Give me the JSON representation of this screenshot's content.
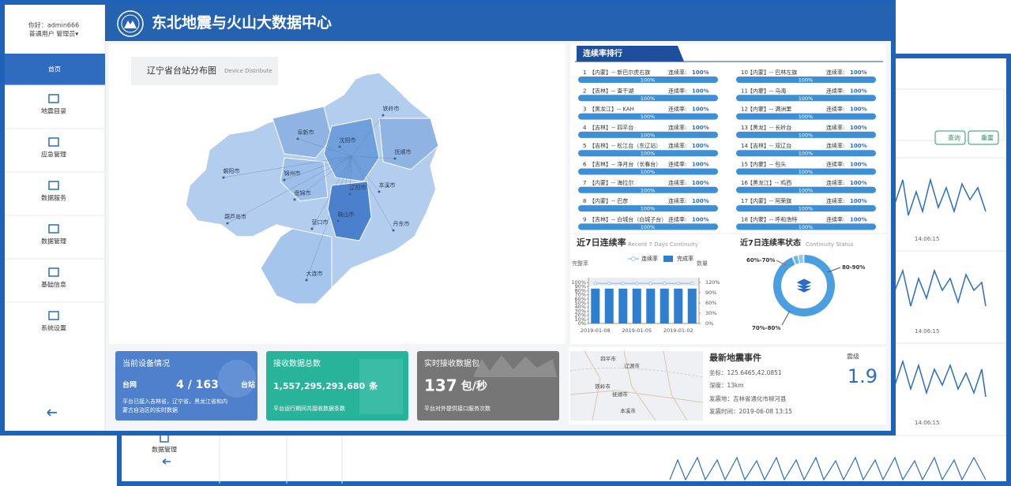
{
  "back_window": {
    "buttons": [
      "查询",
      "重置"
    ],
    "times": [
      "14:06:15",
      "14:06:15",
      "14:06:15"
    ],
    "sidebar_item": "数据管理"
  },
  "sidebar": {
    "greeting": "你好：admin666",
    "role": "普通用户 管理员▾",
    "menu": [
      "首页",
      "地震目录",
      "应急管理",
      "数据服务",
      "数据管理",
      "基础信息",
      "系统设置"
    ]
  },
  "header": {
    "title": "东北地震与火山大数据中心"
  },
  "map": {
    "title": "辽宁省台站分布图",
    "subtitle": "Device Distribute",
    "cities": [
      "铁岭市",
      "阜新市",
      "沈阳市",
      "抚顺市",
      "朝阳市",
      "锦州市",
      "辽阳市",
      "本溪市",
      "盘锦市",
      "鞍山市",
      "葫芦岛市",
      "营口市",
      "丹东市",
      "大连市"
    ]
  },
  "ranking": {
    "title": "连续率排行",
    "rate_label": "连续率:",
    "items": [
      {
        "rank": "1",
        "station": "【内蒙】-- 新巴尔虎右旗",
        "rate": 100,
        "rate_label": "100%"
      },
      {
        "rank": "2",
        "station": "【吉林】-- 查干湖",
        "rate": 100,
        "rate_label": "100%"
      },
      {
        "rank": "3",
        "station": "【黑龙江】-- KAH",
        "rate": 100,
        "rate_label": "100%"
      },
      {
        "rank": "4",
        "station": "【吉林】-- 四平台",
        "rate": 100,
        "rate_label": "100%"
      },
      {
        "rank": "5",
        "station": "【吉林】-- 松江台（东辽站）",
        "rate": 100,
        "rate_label": "100%"
      },
      {
        "rank": "6",
        "station": "【吉林】-- 净月台（长春台）",
        "rate": 100,
        "rate_label": "100%"
      },
      {
        "rank": "7",
        "station": "【内蒙】-- 海拉尔",
        "rate": 100,
        "rate_label": "100%"
      },
      {
        "rank": "8",
        "station": "【内蒙】-- 巴彦",
        "rate": 100,
        "rate_label": "100%"
      },
      {
        "rank": "9",
        "station": "【吉林】-- 白城台（白城子台）",
        "rate": 100,
        "rate_label": "100%"
      },
      {
        "rank": "10",
        "station": "【内蒙】-- 巴林左旗",
        "rate": 100,
        "rate_label": "100%"
      },
      {
        "rank": "11",
        "station": "【内蒙】-- 乌海",
        "rate": 100,
        "rate_label": "100%"
      },
      {
        "rank": "12",
        "station": "【内蒙】-- 满洲里",
        "rate": 100,
        "rate_label": "100%"
      },
      {
        "rank": "13",
        "station": "【黑龙】-- 长岭台",
        "rate": 100,
        "rate_label": "100%"
      },
      {
        "rank": "14",
        "station": "【吉林】-- 双辽台",
        "rate": 100,
        "rate_label": "100%"
      },
      {
        "rank": "15",
        "station": "【内蒙】-- 包头",
        "rate": 100,
        "rate_label": "100%"
      },
      {
        "rank": "16",
        "station": "【黑龙江】-- 鸡西",
        "rate": 100,
        "rate_label": "100%"
      },
      {
        "rank": "17",
        "station": "【内蒙】-- 阿荣旗",
        "rate": 100,
        "rate_label": "100%"
      },
      {
        "rank": "18",
        "station": "【内蒙】-- 呼和浩特",
        "rate": 100,
        "rate_label": "100%"
      }
    ]
  },
  "continuity_chart": {
    "type": "bar",
    "title": "近7日连续率",
    "subtitle": "Recent 7 Days Continuity",
    "y_label": "完整率",
    "y2_label": "数量",
    "categories": [
      "2019-01-08",
      null,
      null,
      "2019-01-05",
      null,
      null,
      "2019-01-02",
      null
    ],
    "series": [
      {
        "name": "连续率",
        "type": "line",
        "axis": "y2",
        "color": "#9ec9e8",
        "values": [
          117,
          117,
          117,
          117,
          117,
          117,
          117,
          117
        ]
      },
      {
        "name": "完成率",
        "type": "bar",
        "color": "#2f7fd0",
        "values": [
          85,
          85,
          85,
          85,
          85,
          85,
          85,
          85
        ]
      }
    ],
    "ylim": [
      0,
      100
    ],
    "yticks": [
      {
        "value": 0,
        "label": "0%"
      },
      {
        "value": 10,
        "label": "10%"
      },
      {
        "value": 20,
        "label": "20%"
      },
      {
        "value": 30,
        "label": "30%"
      },
      {
        "value": 40,
        "label": "40%"
      },
      {
        "value": 50,
        "label": "50%"
      },
      {
        "value": 60,
        "label": "60%"
      },
      {
        "value": 70,
        "label": "70%"
      },
      {
        "value": 80,
        "label": "80%"
      },
      {
        "value": 90,
        "label": "90%"
      },
      {
        "value": 100,
        "label": "100%"
      }
    ],
    "y2lim": [
      0,
      120
    ],
    "y2ticks": [
      {
        "value": 0,
        "label": "0%"
      },
      {
        "value": 30,
        "label": "30%"
      },
      {
        "value": 60,
        "label": "60%"
      },
      {
        "value": 90,
        "label": "90%"
      },
      {
        "value": 120,
        "label": "120%"
      }
    ]
  },
  "status_chart": {
    "type": "pie",
    "title": "近7日连续率状态",
    "subtitle": "Continuity Status",
    "categories": [
      "60%-70%",
      "80-90%",
      "70%-80%"
    ],
    "values": [
      3,
      94,
      3
    ],
    "colors": [
      "#8cc6ee",
      "#4a9fe0",
      "#6fb5e8"
    ]
  },
  "cards": [
    {
      "title": "当前设备情况",
      "left": "台网",
      "value": "4 / 163",
      "unit": "台站",
      "note": [
        "平台已接入吉林省，辽宁省，黑龙江省和内",
        "蒙古自治区的实时数据"
      ]
    },
    {
      "title": "接收数据总数",
      "value": "1,557,295,293,680",
      "unit": "条",
      "note": [
        "平台运行期间共接收数据条数"
      ]
    },
    {
      "title": "实时接收数据包",
      "value": "137",
      "unit": "包/秒",
      "note": [
        "平台对外提供接口服务次数"
      ]
    }
  ],
  "quake": {
    "map_labels": [
      "四平市",
      "辽源市",
      "铁岭市",
      "抚顺市",
      "本溪市"
    ],
    "title": "最新地震事件",
    "coord": "坐标：125.6465,42.0851",
    "depth": "深度：13km",
    "place": "发震地：吉林省通化市柳河县",
    "time": "发震时间：2019-06-08 13:15",
    "magnitude_label": "震级",
    "magnitude": "1.9"
  }
}
